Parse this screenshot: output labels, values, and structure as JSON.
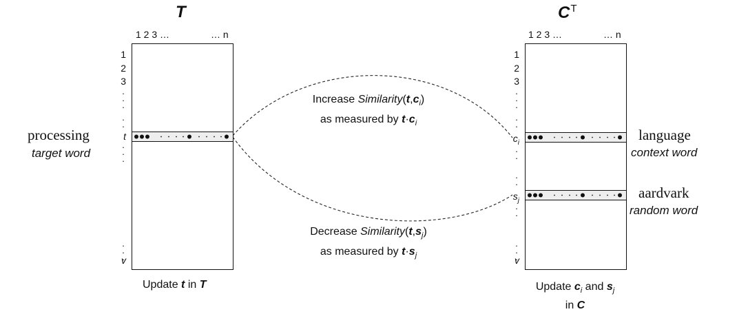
{
  "matrices": {
    "target": {
      "title": "T",
      "column_numbers": "1 2 3 …",
      "column_end": "… n",
      "row_labels": [
        "1",
        "2",
        "3"
      ],
      "row_highlight_label": "t",
      "row_end_label": "v",
      "caption_prefix": "Update ",
      "caption_var": "t",
      "caption_mid": " in ",
      "caption_matrix": "T"
    },
    "context": {
      "title": "C",
      "title_superscript": "T",
      "column_numbers": "1 2 3 …",
      "column_end": "… n",
      "row_labels": [
        "1",
        "2",
        "3"
      ],
      "row_context_label": "c",
      "row_context_sub": "i",
      "row_random_label": "s",
      "row_random_sub": "j",
      "row_end_label": "v",
      "caption_line1_prefix": "Update ",
      "caption_c": "c",
      "caption_c_sub": "i",
      "caption_and": " and ",
      "caption_s": "s",
      "caption_s_sub": "j",
      "caption_line2_prefix": "in ",
      "caption_matrix": "C"
    }
  },
  "words": {
    "target_word": "processing",
    "target_word_sub": "target word",
    "context_word": "language",
    "context_word_sub": "context word",
    "random_word": "aardvark",
    "random_word_sub": "random word"
  },
  "arrows": {
    "increase": {
      "line1_prefix": "Increase ",
      "similarity": "Similarity",
      "open": "(",
      "t": "t",
      "comma": ",",
      "c": "c",
      "sub": "i",
      "close": ")",
      "line2_prefix": "as measured by ",
      "dot": "·"
    },
    "decrease": {
      "line1_prefix": "Decrease ",
      "similarity": "Similarity",
      "open": "(",
      "t": "t",
      "comma": ",",
      "s": "s",
      "sub": "j",
      "close": ")",
      "line2_prefix": "as measured by ",
      "dot": "·"
    }
  }
}
